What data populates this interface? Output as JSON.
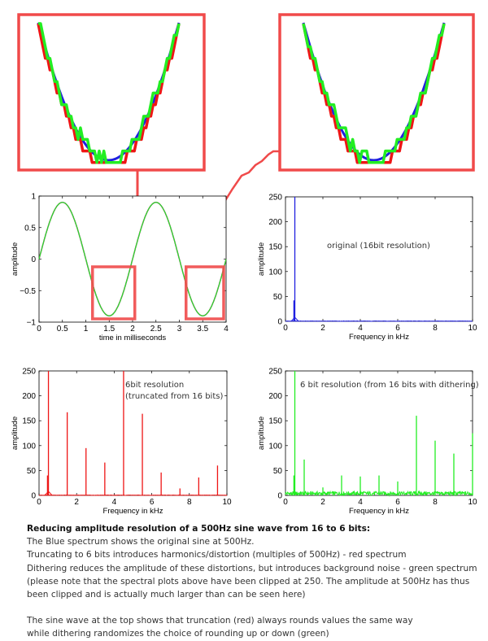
{
  "colors": {
    "original": "#2020e0",
    "truncated": "#ee1515",
    "dithered": "#22ee22",
    "highlight_box": "#f04a4a"
  },
  "chart_data": [
    {
      "id": "sine",
      "type": "line",
      "xlabel": "time in milliseconds",
      "ylabel": "amplitude",
      "xlim": [
        0,
        4
      ],
      "ylim": [
        -1,
        1
      ],
      "xticks": [
        "0",
        "0.5",
        "1",
        "1.5",
        "2",
        "2.5",
        "3",
        "3.5",
        "4"
      ],
      "yticks": [
        "-1",
        "-0.5",
        "0",
        "0.5",
        "1"
      ],
      "frequency_hz": 500,
      "amplitude": 0.9,
      "series": [
        {
          "color": "#2020e0",
          "bits": 16
        },
        {
          "color": "#ee1515",
          "bits": 6,
          "quantization": "truncation"
        },
        {
          "color": "#22ee22",
          "bits": 6,
          "quantization": "dithering"
        }
      ],
      "highlighted_regions_ms": [
        [
          0.9,
          2.1
        ],
        [
          2.9,
          4.0
        ]
      ]
    },
    {
      "id": "original-spectrum",
      "type": "line",
      "xlabel": "Frequency in kHz",
      "ylabel": "amplitude",
      "xlim": [
        0,
        10
      ],
      "ylim": [
        0,
        250
      ],
      "xticks": [
        "0",
        "2",
        "4",
        "6",
        "8",
        "10"
      ],
      "yticks": [
        "0",
        "50",
        "100",
        "150",
        "200",
        "250"
      ],
      "color": "#2020e0",
      "annotation": [
        "original (16bit resolution)"
      ],
      "peaks": [
        {
          "x": 0.5,
          "y": 250
        },
        {
          "x": 0.45,
          "y": 42
        }
      ],
      "noise_floor": 1
    },
    {
      "id": "truncated-spectrum",
      "type": "line",
      "xlabel": "Frequency in kHz",
      "ylabel": "amplitude",
      "xlim": [
        0,
        10
      ],
      "ylim": [
        0,
        250
      ],
      "xticks": [
        "0",
        "2",
        "4",
        "6",
        "8",
        "10"
      ],
      "yticks": [
        "0",
        "50",
        "100",
        "150",
        "200",
        "250"
      ],
      "color": "#ee1515",
      "annotation": [
        "6bit resolution",
        "(truncated from 16 bits)"
      ],
      "peaks": [
        {
          "x": 0.5,
          "y": 250
        },
        {
          "x": 0.45,
          "y": 40
        },
        {
          "x": 1.5,
          "y": 167
        },
        {
          "x": 2.5,
          "y": 95
        },
        {
          "x": 3.5,
          "y": 66
        },
        {
          "x": 4.5,
          "y": 250
        },
        {
          "x": 5.5,
          "y": 164
        },
        {
          "x": 6.5,
          "y": 46
        },
        {
          "x": 7.5,
          "y": 14
        },
        {
          "x": 8.5,
          "y": 36
        },
        {
          "x": 9.5,
          "y": 60
        }
      ],
      "noise_floor": 1
    },
    {
      "id": "dithered-spectrum",
      "type": "line",
      "xlabel": "Frequency in kHz",
      "ylabel": "amplitude",
      "xlim": [
        0,
        10
      ],
      "ylim": [
        0,
        250
      ],
      "xticks": [
        "0",
        "2",
        "4",
        "6",
        "8",
        "10"
      ],
      "yticks": [
        "0",
        "50",
        "100",
        "150",
        "200",
        "250"
      ],
      "color": "#22ee22",
      "annotation": [
        "6 bit resolution (from 16 bits with dithering)"
      ],
      "peaks": [
        {
          "x": 0.5,
          "y": 250
        },
        {
          "x": 0.45,
          "y": 40
        },
        {
          "x": 1,
          "y": 72
        },
        {
          "x": 2,
          "y": 16
        },
        {
          "x": 3,
          "y": 40
        },
        {
          "x": 4,
          "y": 38
        },
        {
          "x": 5,
          "y": 40
        },
        {
          "x": 6,
          "y": 28
        },
        {
          "x": 7,
          "y": 160
        },
        {
          "x": 8,
          "y": 110
        },
        {
          "x": 9,
          "y": 84
        },
        {
          "x": 10,
          "y": 125
        }
      ],
      "noise_floor": 8
    }
  ],
  "zoom_insets": [
    {
      "center_ms": 1.5,
      "t_range_ms": [
        1.2,
        1.8
      ]
    },
    {
      "center_ms": 3.5,
      "t_range_ms": [
        3.2,
        3.8
      ]
    }
  ],
  "caption": {
    "title": "Reducing amplitude resolution of a 500Hz sine wave from 16 to 6 bits:",
    "lines": [
      "The Blue spectrum shows the original sine at 500Hz.",
      "Truncating to 6 bits introduces harmonics/distortion (multiples of 500Hz) - red spectrum",
      "Dithering reduces the amplitude of these distortions, but introduces background noise - green spectrum",
      "(please note that the spectral plots above have been clipped at 250. The amplitude at 500Hz has thus",
      "been clipped and is actually much larger than can be seen here)"
    ],
    "lines2": [
      "The sine wave at the top shows that truncation (red) always rounds values the same way",
      "while dithering randomizes the choice of rounding up or down (green)"
    ]
  }
}
